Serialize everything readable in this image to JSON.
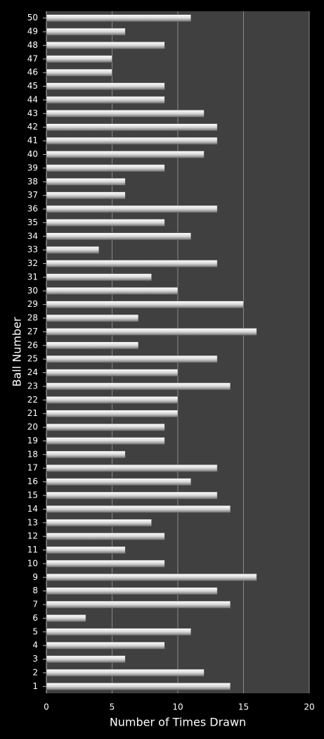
{
  "chart_data": {
    "type": "bar",
    "orientation": "horizontal",
    "x_label": "Number of Times Drawn",
    "y_label": "Ball Number",
    "categories": [
      "1",
      "2",
      "3",
      "4",
      "5",
      "6",
      "7",
      "8",
      "9",
      "10",
      "11",
      "12",
      "13",
      "14",
      "15",
      "16",
      "17",
      "18",
      "19",
      "20",
      "21",
      "22",
      "23",
      "24",
      "25",
      "26",
      "27",
      "28",
      "29",
      "30",
      "31",
      "32",
      "33",
      "34",
      "35",
      "36",
      "37",
      "38",
      "39",
      "40",
      "41",
      "42",
      "43",
      "44",
      "45",
      "46",
      "47",
      "48",
      "49",
      "50"
    ],
    "values": [
      14,
      12,
      6,
      9,
      11,
      3,
      14,
      13,
      16,
      9,
      6,
      9,
      8,
      14,
      13,
      11,
      13,
      6,
      9,
      9,
      10,
      10,
      14,
      10,
      13,
      7,
      16,
      7,
      15,
      10,
      8,
      13,
      4,
      11,
      9,
      13,
      6,
      6,
      9,
      12,
      13,
      13,
      12,
      9,
      9,
      5,
      5,
      9,
      6,
      11
    ],
    "color": "#d8d8d8",
    "xlim": [
      0,
      20
    ],
    "xticks": [
      0,
      5,
      10,
      15,
      20
    ],
    "grid": true
  }
}
